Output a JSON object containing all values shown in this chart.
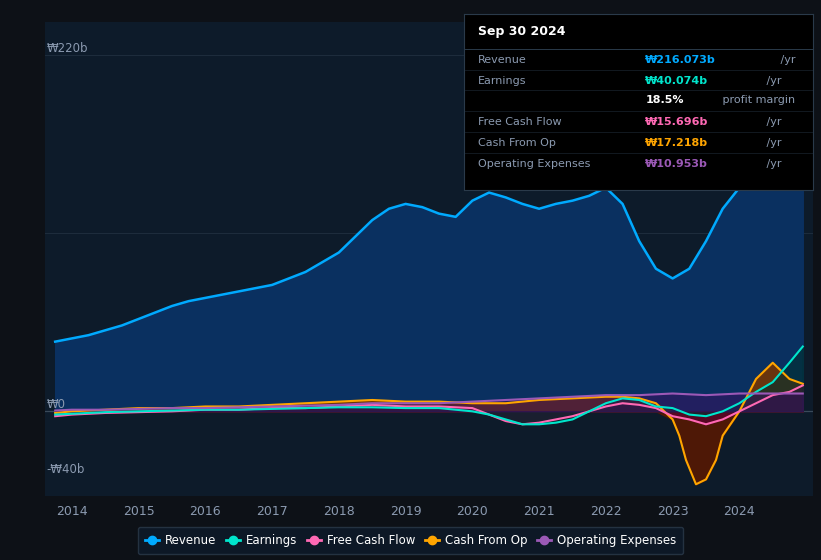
{
  "bg_color": "#0d1117",
  "plot_bg_color": "#0d1b2a",
  "text_color": "#8b9ab0",
  "ylabel_top": "₩220b",
  "ylabel_zero": "₩0",
  "ylabel_bottom": "-₩40b",
  "ylim": [
    -52,
    240
  ],
  "xlim": [
    2013.6,
    2025.1
  ],
  "xticks": [
    2014,
    2015,
    2016,
    2017,
    2018,
    2019,
    2020,
    2021,
    2022,
    2023,
    2024
  ],
  "revenue_color": "#00aaff",
  "revenue_fill": "#0a3060",
  "earnings_color": "#00e5cc",
  "earnings_fill": "#003030",
  "fcf_color": "#ff69b4",
  "fcf_fill": "#5a0030",
  "cashop_color": "#ffa500",
  "cashop_fill": "#7a3500",
  "opex_color": "#9b59b6",
  "opex_fill": "#3a1060",
  "revenue_x": [
    2013.75,
    2014.0,
    2014.25,
    2014.5,
    2014.75,
    2015.0,
    2015.25,
    2015.5,
    2015.75,
    2016.0,
    2016.25,
    2016.5,
    2016.75,
    2017.0,
    2017.25,
    2017.5,
    2017.75,
    2018.0,
    2018.25,
    2018.5,
    2018.75,
    2019.0,
    2019.25,
    2019.5,
    2019.75,
    2020.0,
    2020.25,
    2020.5,
    2020.75,
    2021.0,
    2021.25,
    2021.5,
    2021.75,
    2022.0,
    2022.25,
    2022.5,
    2022.75,
    2023.0,
    2023.25,
    2023.5,
    2023.75,
    2024.0,
    2024.25,
    2024.5,
    2024.75,
    2024.95
  ],
  "revenue_y": [
    43,
    45,
    47,
    50,
    53,
    57,
    61,
    65,
    68,
    70,
    72,
    74,
    76,
    78,
    82,
    86,
    92,
    98,
    108,
    118,
    125,
    128,
    126,
    122,
    120,
    130,
    135,
    132,
    128,
    125,
    128,
    130,
    133,
    138,
    128,
    105,
    88,
    82,
    88,
    105,
    125,
    138,
    148,
    158,
    185,
    216
  ],
  "earnings_x": [
    2013.75,
    2014.0,
    2014.5,
    2015.0,
    2015.5,
    2016.0,
    2016.5,
    2017.0,
    2017.5,
    2018.0,
    2018.5,
    2019.0,
    2019.5,
    2020.0,
    2020.25,
    2020.5,
    2020.75,
    2021.0,
    2021.25,
    2021.5,
    2021.75,
    2022.0,
    2022.25,
    2022.5,
    2022.75,
    2023.0,
    2023.25,
    2023.5,
    2023.75,
    2024.0,
    2024.25,
    2024.5,
    2024.75,
    2024.95
  ],
  "earnings_y": [
    -2,
    -1.5,
    -0.5,
    0,
    0.5,
    1,
    1,
    1.5,
    2,
    2.5,
    2.5,
    2,
    2,
    0,
    -2,
    -5,
    -8,
    -8,
    -7,
    -5,
    0,
    5,
    8,
    7,
    3,
    2,
    -2,
    -3,
    0,
    5,
    12,
    18,
    30,
    40
  ],
  "fcf_x": [
    2013.75,
    2014.0,
    2014.5,
    2015.0,
    2015.5,
    2016.0,
    2016.5,
    2017.0,
    2017.5,
    2018.0,
    2018.5,
    2019.0,
    2019.5,
    2020.0,
    2020.25,
    2020.5,
    2020.75,
    2021.0,
    2021.25,
    2021.5,
    2021.75,
    2022.0,
    2022.25,
    2022.5,
    2022.75,
    2023.0,
    2023.25,
    2023.5,
    2023.75,
    2024.0,
    2024.25,
    2024.5,
    2024.75,
    2024.95
  ],
  "fcf_y": [
    -3,
    -2,
    -1,
    -0.5,
    0,
    1,
    1,
    2,
    2,
    3,
    4,
    3,
    3,
    2,
    -2,
    -6,
    -8,
    -7,
    -5,
    -3,
    0,
    3,
    5,
    4,
    2,
    -3,
    -5,
    -8,
    -5,
    0,
    5,
    10,
    12,
    16
  ],
  "cashop_x": [
    2013.75,
    2014.0,
    2014.5,
    2015.0,
    2015.5,
    2016.0,
    2016.5,
    2017.0,
    2017.5,
    2018.0,
    2018.5,
    2019.0,
    2019.5,
    2020.0,
    2020.5,
    2021.0,
    2021.5,
    2022.0,
    2022.25,
    2022.5,
    2022.75,
    2023.0,
    2023.1,
    2023.2,
    2023.35,
    2023.5,
    2023.65,
    2023.75,
    2024.0,
    2024.25,
    2024.5,
    2024.75,
    2024.95
  ],
  "cashop_y": [
    -1,
    0,
    1,
    2,
    2,
    3,
    3,
    4,
    5,
    6,
    7,
    6,
    6,
    5,
    5,
    7,
    8,
    9,
    9,
    8,
    5,
    -5,
    -15,
    -30,
    -45,
    -42,
    -30,
    -15,
    0,
    20,
    30,
    20,
    17
  ],
  "opex_x": [
    2013.75,
    2014.0,
    2014.5,
    2015.0,
    2015.5,
    2016.0,
    2016.5,
    2017.0,
    2017.5,
    2018.0,
    2018.5,
    2019.0,
    2019.5,
    2020.0,
    2020.5,
    2021.0,
    2021.5,
    2022.0,
    2022.5,
    2023.0,
    2023.5,
    2024.0,
    2024.5,
    2024.95
  ],
  "opex_y": [
    0.5,
    1,
    1,
    1.5,
    2,
    2,
    2.5,
    3,
    3.5,
    4,
    5,
    5,
    5,
    6,
    7,
    8,
    9,
    10,
    10,
    11,
    10,
    11,
    11,
    11
  ],
  "info_box": {
    "title": "Sep 30 2024",
    "title_color": "#ffffff",
    "bg": "#000000",
    "border_color": "#2a3a4a",
    "label_color": "#8b9ab0",
    "rows": [
      {
        "label": "Revenue",
        "value": "₩216.073b",
        "unit": " /yr",
        "value_color": "#00aaff"
      },
      {
        "label": "Earnings",
        "value": "₩40.074b",
        "unit": " /yr",
        "value_color": "#00e5cc"
      },
      {
        "label": "",
        "value": "18.5%",
        "unit": " profit margin",
        "value_color": "#ffffff"
      },
      {
        "label": "Free Cash Flow",
        "value": "₩15.696b",
        "unit": " /yr",
        "value_color": "#ff69b4"
      },
      {
        "label": "Cash From Op",
        "value": "₩17.218b",
        "unit": " /yr",
        "value_color": "#ffa500"
      },
      {
        "label": "Operating Expenses",
        "value": "₩10.953b",
        "unit": " /yr",
        "value_color": "#9b59b6"
      }
    ]
  },
  "legend": [
    {
      "label": "Revenue",
      "color": "#00aaff"
    },
    {
      "label": "Earnings",
      "color": "#00e5cc"
    },
    {
      "label": "Free Cash Flow",
      "color": "#ff69b4"
    },
    {
      "label": "Cash From Op",
      "color": "#ffa500"
    },
    {
      "label": "Operating Expenses",
      "color": "#9b59b6"
    }
  ]
}
